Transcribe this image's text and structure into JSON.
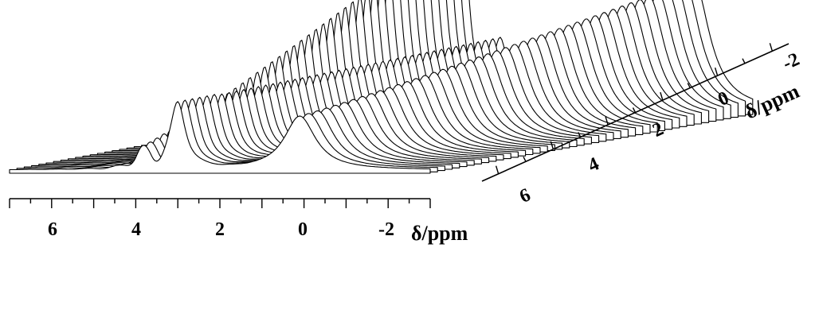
{
  "chart_data": {
    "type": "line",
    "subtype": "3d-waterfall",
    "title": "",
    "xlabel": "δ/ppm",
    "depth_label": "δ/ppm",
    "xlim": [
      7,
      -3
    ],
    "x_ticks": [
      "6",
      "4",
      "2",
      "0",
      "-2"
    ],
    "depth_ticks": [
      "6",
      "4",
      "2",
      "0",
      "-2"
    ],
    "n_traces": 45,
    "peaks_front": [
      {
        "ppm": 3.9,
        "height": 0.12
      },
      {
        "ppm": 3.0,
        "height": 0.55
      },
      {
        "ppm": 0.1,
        "height": 0.45
      }
    ],
    "peaks_back": [
      {
        "ppm": 3.0,
        "height": 1.6
      },
      {
        "ppm": 0.1,
        "height": 0.55
      },
      {
        "ppm": -1.6,
        "height": 1.1
      }
    ],
    "grid": false,
    "legend": "none",
    "line_color": "#000000"
  }
}
